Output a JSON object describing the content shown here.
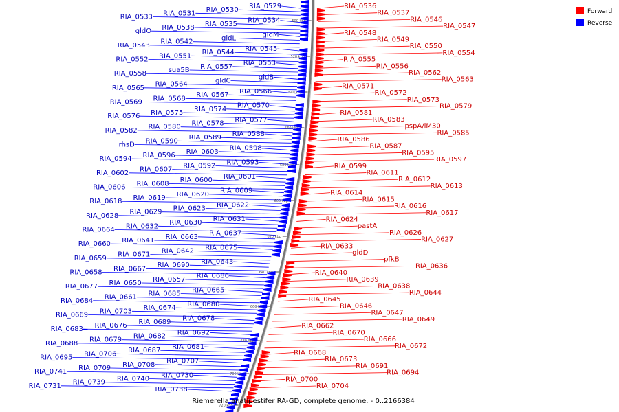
{
  "colors": {
    "forward": "#ff0000",
    "reverse": "#0000ff",
    "backbone": "#777777",
    "fwd_label": "#cc0000",
    "rev_label": "#0000bb"
  },
  "legend": [
    {
      "key": "forward",
      "label": "Forward",
      "color": "#ff0000"
    },
    {
      "key": "reverse",
      "label": "Reverse",
      "color": "#0000ff"
    }
  ],
  "caption": "Riemerella anatipestifer RA-GD, complete genome. - 0..2166384",
  "tick_labels": [
    "500 kbp",
    "520 kbp",
    "540 kbp",
    "560 kbp",
    "580 kbp",
    "600 kbp",
    "620 kbp",
    "640 kbp",
    "660 kbp",
    "680 kbp",
    "700 kbp",
    "720 kbp"
  ],
  "reverse_labels": [
    "RIA_0529",
    "RIA_0530",
    "RIA_0531",
    "RIA_0533",
    "RIA_0534",
    "RIA_0535",
    "RIA_0538",
    "gldO",
    "gldM",
    "gldL",
    "RIA_0542",
    "RIA_0543",
    "RIA_0545",
    "RIA_0544",
    "RIA_0551",
    "RIA_0552",
    "RIA_0553",
    "RIA_0557",
    "sua5B",
    "RIA_0558",
    "gldB",
    "gldC",
    "RIA_0564",
    "RIA_0565",
    "RIA_0566",
    "RIA_0567",
    "RIA_0568",
    "RIA_0569",
    "RIA_0570",
    "RIA_0574",
    "RIA_0575",
    "RIA_0576",
    "RIA_0577",
    "RIA_0578",
    "RIA_0580",
    "RIA_0582",
    "RIA_0588",
    "RIA_0589",
    "RIA_0590",
    "rhsD",
    "RIA_0598",
    "RIA_0603",
    "RIA_0596",
    "RIA_0594",
    "RIA_0593",
    "RIA_0592",
    "RIA_0607",
    "RIA_0602",
    "RIA_0601",
    "RIA_0600",
    "RIA_0608",
    "RIA_0606",
    "RIA_0609",
    "RIA_0620",
    "RIA_0619",
    "RIA_0618",
    "RIA_0622",
    "RIA_0623",
    "RIA_0629",
    "RIA_0628",
    "RIA_0631",
    "RIA_0630",
    "RIA_0632",
    "RIA_0664",
    "RIA_0637",
    "RIA_0663",
    "RIA_0641",
    "RIA_0660",
    "RIA_0675",
    "RIA_0642",
    "RIA_0671",
    "RIA_0659",
    "RIA_0643",
    "RIA_0690",
    "RIA_0667",
    "RIA_0658",
    "RIA_0686",
    "RIA_0657",
    "RIA_0650",
    "RIA_0677",
    "RIA_0665",
    "RIA_0685",
    "RIA_0661",
    "RIA_0684",
    "RIA_0680",
    "RIA_0674",
    "RIA_0703",
    "RIA_0669",
    "RIA_0678",
    "RIA_0689",
    "RIA_0676",
    "RIA_0683",
    "RIA_0692",
    "RIA_0682",
    "RIA_0679",
    "RIA_0688",
    "RIA_0681",
    "RIA_0687",
    "RIA_0706",
    "RIA_0695",
    "RIA_0707",
    "RIA_0708",
    "RIA_0709",
    "RIA_0741",
    "RIA_0730",
    "RIA_0740",
    "RIA_0739",
    "RIA_0731",
    "RIA_0738"
  ],
  "forward_labels": [
    "RIA_0536",
    "RIA_0537",
    "RIA_0546",
    "RIA_0547",
    "RIA_0548",
    "RIA_0549",
    "RIA_0550",
    "RIA_0554",
    "RIA_0555",
    "RIA_0556",
    "RIA_0562",
    "RIA_0563",
    "RIA_0571",
    "RIA_0572",
    "RIA_0573",
    "RIA_0579",
    "RIA_0581",
    "RIA_0583",
    "pspA/iM30",
    "RIA_0585",
    "RIA_0586",
    "RIA_0587",
    "RIA_0595",
    "RIA_0597",
    "RIA_0599",
    "RIA_0611",
    "RIA_0612",
    "RIA_0613",
    "RIA_0614",
    "RIA_0615",
    "RIA_0616",
    "RIA_0617",
    "RIA_0624",
    "pastA",
    "RIA_0626",
    "RIA_0627",
    "RIA_0633",
    "gldD",
    "pfkB",
    "RIA_0636",
    "RIA_0640",
    "RIA_0639",
    "RIA_0638",
    "RIA_0644",
    "RIA_0645",
    "RIA_0646",
    "RIA_0647",
    "RIA_0649",
    "RIA_0662",
    "RIA_0670",
    "RIA_0666",
    "RIA_0672",
    "RIA_0668",
    "RIA_0673",
    "RIA_0691",
    "RIA_0694",
    "RIA_0700",
    "RIA_0704"
  ]
}
